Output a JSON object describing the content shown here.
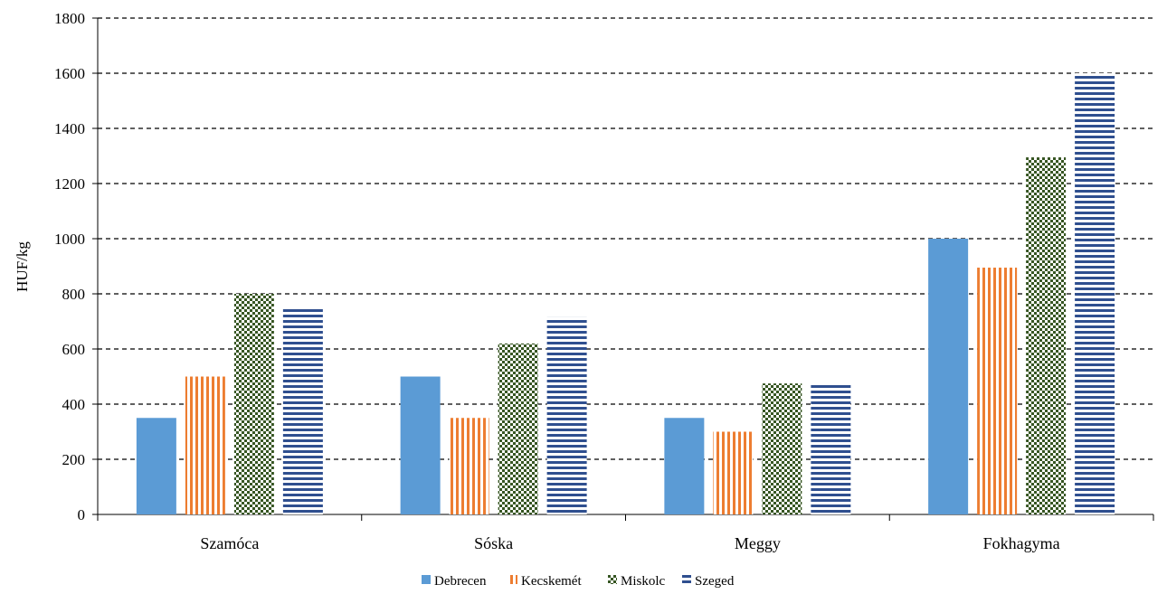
{
  "chart_data": {
    "type": "bar",
    "title": "",
    "xlabel": "",
    "ylabel": "HUF/kg",
    "ylim": [
      0,
      1800
    ],
    "yticks": [
      0,
      200,
      400,
      600,
      800,
      1000,
      1200,
      1400,
      1600,
      1800
    ],
    "categories": [
      "Szamóca",
      "Sóska",
      "Meggy",
      "Fokhagyma"
    ],
    "series": [
      {
        "name": "Debrecen",
        "values": [
          350,
          500,
          350,
          1000
        ],
        "color": "#5b9bd5",
        "pattern": "solid"
      },
      {
        "name": "Kecskemét",
        "values": [
          500,
          350,
          300,
          895
        ],
        "color": "#ed7d31",
        "pattern": "vertical-stripes"
      },
      {
        "name": "Miskolc",
        "values": [
          800,
          620,
          475,
          1295
        ],
        "color": "#375623",
        "pattern": "checkerboard"
      },
      {
        "name": "Szeged",
        "values": [
          745,
          715,
          475,
          1600
        ],
        "color": "#2f4f8f",
        "pattern": "horizontal-stripes"
      }
    ],
    "grid": "horizontal-dashed",
    "legend_position": "bottom-center"
  }
}
